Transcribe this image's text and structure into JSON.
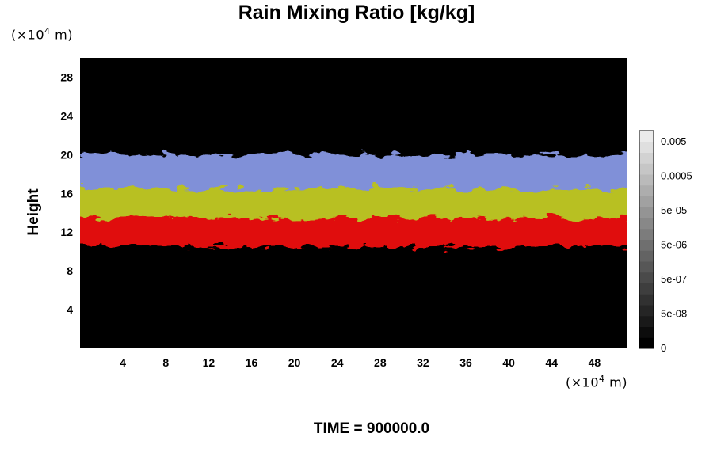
{
  "chart_data": {
    "type": "heatmap",
    "title": "Rain Mixing Ratio [kg/kg]",
    "ylabel": "Height",
    "y_unit": {
      "prefix": "(×10",
      "exp": "4",
      "suffix": " m)"
    },
    "x_unit": {
      "prefix": "(×10",
      "exp": "4",
      "suffix": " m)"
    },
    "xlim": [
      0,
      51
    ],
    "ylim": [
      0,
      30
    ],
    "x_ticks": [
      "4",
      "8",
      "12",
      "16",
      "20",
      "24",
      "28",
      "32",
      "36",
      "40",
      "44",
      "48"
    ],
    "y_ticks": [
      "4",
      "8",
      "12",
      "16",
      "20",
      "24",
      "28"
    ],
    "background": "#000000",
    "bands": [
      {
        "color": "#e01010",
        "y_range": [
          10.5,
          14.5
        ]
      },
      {
        "color": "#b8c020",
        "y_range": [
          13.5,
          17.5
        ]
      },
      {
        "color": "#8090d8",
        "y_range": [
          16.5,
          20
        ]
      }
    ],
    "colorbar": {
      "labels": [
        "0.005",
        "0.0005",
        "5e-05",
        "5e-06",
        "5e-07",
        "5e-08",
        "0"
      ],
      "levels": 20
    },
    "footer": "TIME = 900000.0"
  }
}
